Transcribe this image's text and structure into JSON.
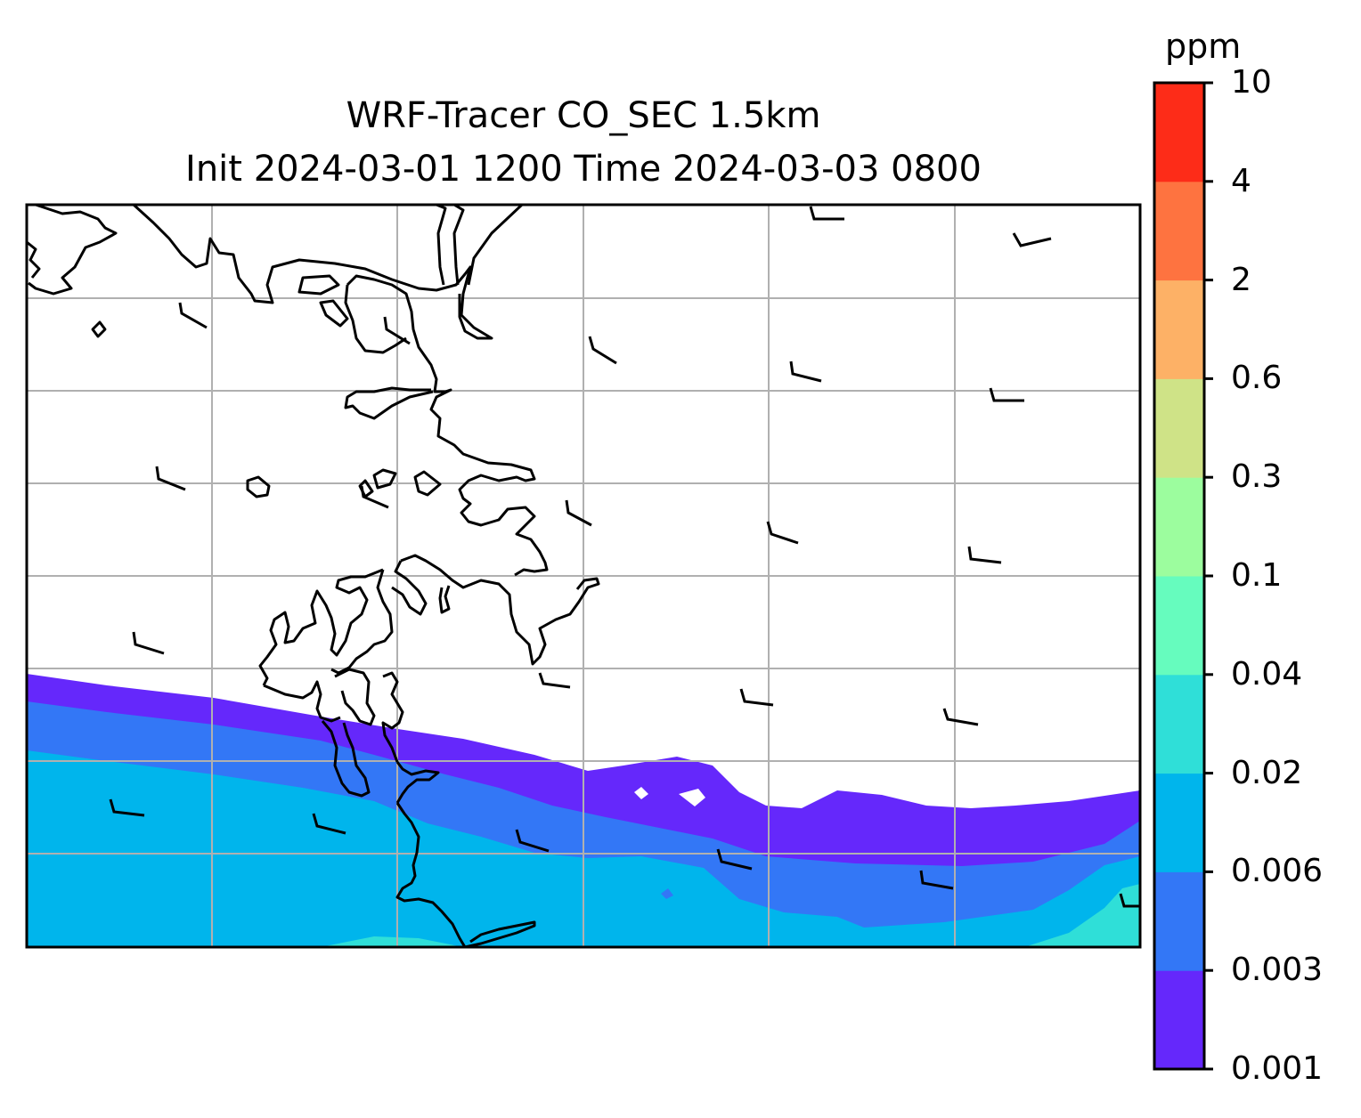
{
  "title": {
    "line1": "WRF-Tracer CO_SEC 1.5km",
    "line2": "Init 2024-03-01 1200 Time 2024-03-03 0800"
  },
  "colorbar": {
    "unit": "ppm",
    "levels": [
      "0.001",
      "0.003",
      "0.006",
      "0.02",
      "0.04",
      "0.1",
      "0.3",
      "0.6",
      "2",
      "4",
      "10"
    ],
    "colors": [
      "#6528fb",
      "#3377f6",
      "#00b5ec",
      "#2fdfd8",
      "#66fcbe",
      "#9cfd9e",
      "#cfe387",
      "#fdb166",
      "#fe7340",
      "#fd2c18"
    ]
  },
  "map": {
    "fill_levels_present": [
      "0.001",
      "0.003",
      "0.006",
      "0.02"
    ],
    "coastline_color": "#000000",
    "gridline_color": "#b0b0b0",
    "wind_barb_color": "#000000"
  }
}
